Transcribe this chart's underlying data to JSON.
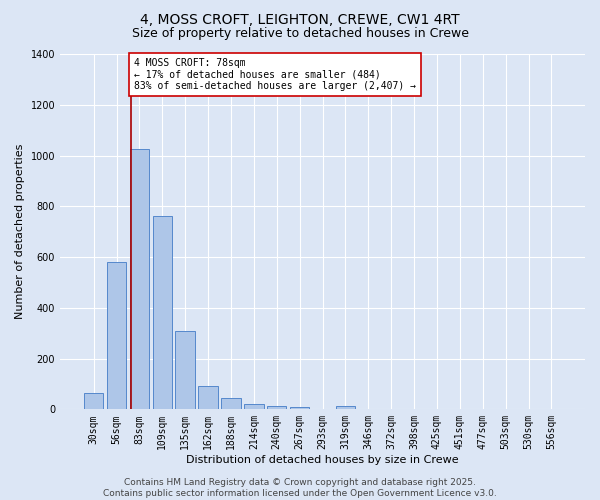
{
  "title": "4, MOSS CROFT, LEIGHTON, CREWE, CW1 4RT",
  "subtitle": "Size of property relative to detached houses in Crewe",
  "xlabel": "Distribution of detached houses by size in Crewe",
  "ylabel": "Number of detached properties",
  "categories": [
    "30sqm",
    "56sqm",
    "83sqm",
    "109sqm",
    "135sqm",
    "162sqm",
    "188sqm",
    "214sqm",
    "240sqm",
    "267sqm",
    "293sqm",
    "319sqm",
    "346sqm",
    "372sqm",
    "398sqm",
    "425sqm",
    "451sqm",
    "477sqm",
    "503sqm",
    "530sqm",
    "556sqm"
  ],
  "values": [
    65,
    580,
    1025,
    760,
    310,
    90,
    45,
    22,
    14,
    8,
    0,
    12,
    0,
    0,
    0,
    0,
    0,
    0,
    0,
    0,
    0
  ],
  "bar_color": "#aec6e8",
  "bar_edge_color": "#5588cc",
  "background_color": "#dce6f5",
  "grid_color": "#ffffff",
  "vline_color": "#aa0000",
  "vline_x_index": 1.62,
  "annotation_text": "4 MOSS CROFT: 78sqm\n← 17% of detached houses are smaller (484)\n83% of semi-detached houses are larger (2,407) →",
  "annotation_box_facecolor": "#ffffff",
  "annotation_box_edgecolor": "#cc0000",
  "ylim": [
    0,
    1400
  ],
  "yticks": [
    0,
    200,
    400,
    600,
    800,
    1000,
    1200,
    1400
  ],
  "footer_text": "Contains HM Land Registry data © Crown copyright and database right 2025.\nContains public sector information licensed under the Open Government Licence v3.0.",
  "title_fontsize": 10,
  "subtitle_fontsize": 9,
  "xlabel_fontsize": 8,
  "ylabel_fontsize": 8,
  "tick_fontsize": 7,
  "annotation_fontsize": 7,
  "footer_fontsize": 6.5
}
